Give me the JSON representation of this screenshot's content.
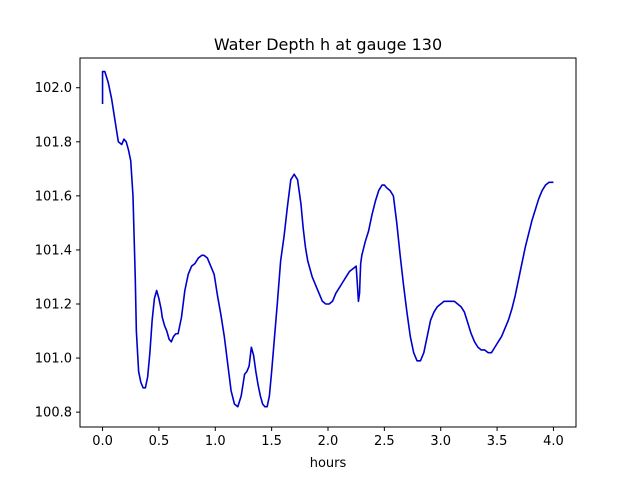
{
  "chart_data": {
    "type": "line",
    "title": "Water Depth h at gauge 130",
    "xlabel": "hours",
    "ylabel": "",
    "xlim": [
      -0.2,
      4.2
    ],
    "ylim": [
      100.745,
      102.11
    ],
    "xticks": [
      0.0,
      0.5,
      1.0,
      1.5,
      2.0,
      2.5,
      3.0,
      3.5,
      4.0
    ],
    "xtick_labels": [
      "0.0",
      "0.5",
      "1.0",
      "1.5",
      "2.0",
      "2.5",
      "3.0",
      "3.5",
      "4.0"
    ],
    "yticks": [
      100.8,
      101.0,
      101.2,
      101.4,
      101.6,
      101.8,
      102.0
    ],
    "ytick_labels": [
      "100.8",
      "101.0",
      "101.2",
      "101.4",
      "101.6",
      "101.8",
      "102.0"
    ],
    "grid": false,
    "legend": "none",
    "series": [
      {
        "color": "#0000cc",
        "x": [
          0.0,
          0.0,
          0.02,
          0.05,
          0.08,
          0.11,
          0.14,
          0.17,
          0.19,
          0.21,
          0.23,
          0.25,
          0.27,
          0.29,
          0.3,
          0.32,
          0.34,
          0.36,
          0.38,
          0.4,
          0.42,
          0.44,
          0.46,
          0.48,
          0.5,
          0.52,
          0.53,
          0.55,
          0.57,
          0.59,
          0.61,
          0.63,
          0.65,
          0.67,
          0.7,
          0.73,
          0.76,
          0.79,
          0.82,
          0.85,
          0.88,
          0.9,
          0.93,
          0.96,
          0.99,
          1.02,
          1.05,
          1.08,
          1.11,
          1.14,
          1.17,
          1.2,
          1.23,
          1.26,
          1.28,
          1.3,
          1.32,
          1.34,
          1.35,
          1.36,
          1.38,
          1.4,
          1.42,
          1.44,
          1.46,
          1.48,
          1.5,
          1.52,
          1.55,
          1.58,
          1.61,
          1.64,
          1.67,
          1.7,
          1.73,
          1.76,
          1.78,
          1.8,
          1.82,
          1.84,
          1.86,
          1.88,
          1.9,
          1.92,
          1.95,
          1.98,
          2.01,
          2.04,
          2.07,
          2.1,
          2.13,
          2.16,
          2.19,
          2.22,
          2.25,
          2.27,
          2.28,
          2.285,
          2.29,
          2.3,
          2.33,
          2.36,
          2.39,
          2.42,
          2.45,
          2.48,
          2.5,
          2.52,
          2.55,
          2.58,
          2.61,
          2.64,
          2.67,
          2.7,
          2.73,
          2.76,
          2.79,
          2.82,
          2.85,
          2.88,
          2.91,
          2.94,
          2.97,
          3.0,
          3.03,
          3.06,
          3.09,
          3.12,
          3.15,
          3.18,
          3.21,
          3.24,
          3.27,
          3.3,
          3.33,
          3.36,
          3.39,
          3.42,
          3.45,
          3.48,
          3.51,
          3.54,
          3.57,
          3.6,
          3.63,
          3.66,
          3.69,
          3.72,
          3.75,
          3.78,
          3.81,
          3.84,
          3.87,
          3.9,
          3.93,
          3.96,
          3.99,
          4.0
        ],
        "y": [
          101.94,
          102.06,
          102.06,
          102.02,
          101.96,
          101.88,
          101.8,
          101.79,
          101.81,
          101.8,
          101.77,
          101.73,
          101.6,
          101.3,
          101.1,
          100.95,
          100.91,
          100.89,
          100.89,
          100.93,
          101.02,
          101.14,
          101.22,
          101.25,
          101.22,
          101.18,
          101.15,
          101.12,
          101.1,
          101.07,
          101.06,
          101.08,
          101.09,
          101.09,
          101.15,
          101.25,
          101.31,
          101.34,
          101.35,
          101.37,
          101.38,
          101.38,
          101.37,
          101.34,
          101.31,
          101.23,
          101.16,
          101.08,
          100.98,
          100.88,
          100.83,
          100.82,
          100.86,
          100.94,
          100.95,
          100.97,
          101.04,
          101.01,
          100.98,
          100.95,
          100.9,
          100.86,
          100.83,
          100.82,
          100.82,
          100.86,
          100.95,
          101.05,
          101.2,
          101.36,
          101.45,
          101.56,
          101.66,
          101.68,
          101.66,
          101.57,
          101.48,
          101.41,
          101.36,
          101.33,
          101.3,
          101.28,
          101.26,
          101.24,
          101.21,
          101.2,
          101.2,
          101.21,
          101.24,
          101.26,
          101.28,
          101.3,
          101.32,
          101.33,
          101.34,
          101.21,
          101.24,
          101.3,
          101.35,
          101.38,
          101.43,
          101.47,
          101.53,
          101.58,
          101.62,
          101.64,
          101.64,
          101.63,
          101.62,
          101.6,
          101.5,
          101.38,
          101.27,
          101.17,
          101.08,
          101.02,
          100.99,
          100.99,
          101.02,
          101.08,
          101.14,
          101.17,
          101.19,
          101.2,
          101.21,
          101.21,
          101.21,
          101.21,
          101.2,
          101.19,
          101.17,
          101.13,
          101.09,
          101.06,
          101.04,
          101.03,
          101.03,
          101.02,
          101.02,
          101.04,
          101.06,
          101.08,
          101.11,
          101.14,
          101.18,
          101.23,
          101.29,
          101.35,
          101.41,
          101.46,
          101.51,
          101.55,
          101.59,
          101.62,
          101.64,
          101.65,
          101.65,
          101.65
        ]
      }
    ]
  }
}
